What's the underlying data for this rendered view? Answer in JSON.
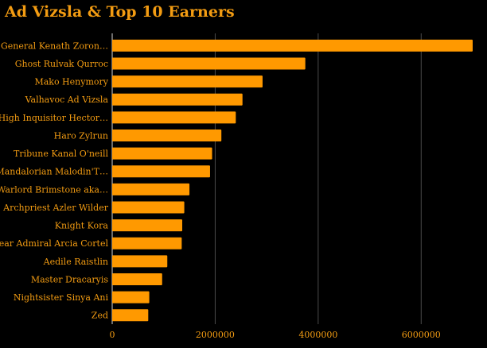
{
  "chart_data": {
    "type": "bar",
    "orientation": "horizontal",
    "title": "Ad Vizsla & Top 10 Earners",
    "xlabel": "",
    "ylabel": "",
    "xlim": [
      0,
      7000000
    ],
    "xticks": [
      0,
      2000000,
      4000000,
      6000000
    ],
    "xtick_labels": [
      "0",
      "2000000",
      "4000000",
      "6000000"
    ],
    "grid": true,
    "bar_color": "#ff9900",
    "text_color": "#f39c12",
    "background": "#000000",
    "categories": [
      "General Kenath Zoron…",
      "Ghost Rulvak Qurroc",
      "Mako Henymory",
      "Valhavoc Ad Vizsla",
      "High Inquisitor Hector…",
      "Haro Zylrun",
      "Tribune Kanal O'neill",
      "Mandalorian Malodin'T…",
      "Warlord Brimstone aka…",
      "Archpriest Azler Wilder",
      "Knight Kora",
      "Rear Admiral Arcia Cortel",
      "Aedile Raistlin",
      "Master Dracaryis",
      "Nightsister Sinya Ani",
      "Zed"
    ],
    "values": [
      7000000,
      3750000,
      2920000,
      2530000,
      2400000,
      2120000,
      1940000,
      1900000,
      1500000,
      1400000,
      1360000,
      1350000,
      1070000,
      970000,
      720000,
      700000
    ]
  }
}
